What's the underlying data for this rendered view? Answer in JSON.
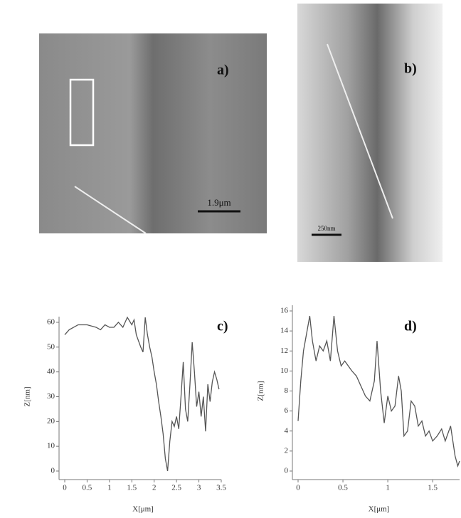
{
  "images": [
    {
      "label": "a)",
      "scale_bar": "1.9μm"
    },
    {
      "label": "b)",
      "scale_bar": "250nm"
    }
  ],
  "chart_data": [
    {
      "type": "line",
      "title": "c)",
      "x_label": "X[μm]",
      "y_label": "Z[nm]",
      "color": "#555555",
      "x": [
        0,
        0.1,
        0.2,
        0.3,
        0.5,
        0.7,
        0.8,
        0.9,
        1.0,
        1.1,
        1.2,
        1.3,
        1.4,
        1.5,
        1.55,
        1.6,
        1.7,
        1.75,
        1.8,
        1.85,
        1.9,
        1.95,
        2.0,
        2.05,
        2.1,
        2.15,
        2.2,
        2.25,
        2.3,
        2.35,
        2.4,
        2.45,
        2.5,
        2.55,
        2.6,
        2.65,
        2.7,
        2.75,
        2.8,
        2.85,
        2.9,
        2.95,
        3.0,
        3.05,
        3.1,
        3.15,
        3.2,
        3.25,
        3.3,
        3.35,
        3.4,
        3.45
      ],
      "values": [
        55,
        57,
        58,
        59,
        59,
        58,
        57,
        59,
        58,
        58,
        60,
        58,
        62,
        59,
        61,
        55,
        50,
        48,
        62,
        55,
        50,
        46,
        40,
        35,
        28,
        22,
        15,
        5,
        0,
        12,
        20,
        18,
        22,
        17,
        30,
        44,
        25,
        20,
        35,
        52,
        40,
        26,
        32,
        22,
        30,
        16,
        35,
        28,
        36,
        40,
        37,
        33
      ],
      "xlim": [
        0,
        3.5
      ],
      "xticks": [
        0,
        0.5,
        1,
        1.5,
        2,
        2.5,
        3,
        3.5
      ],
      "ylim": [
        0,
        60
      ],
      "yticks": [
        0,
        10,
        20,
        30,
        40,
        50,
        60
      ]
    },
    {
      "type": "line",
      "title": "d)",
      "x_label": "X[μm]",
      "y_label": "Z[nm]",
      "color": "#555555",
      "x": [
        0,
        0.03,
        0.06,
        0.1,
        0.13,
        0.16,
        0.2,
        0.24,
        0.28,
        0.32,
        0.36,
        0.4,
        0.44,
        0.48,
        0.52,
        0.56,
        0.6,
        0.65,
        0.7,
        0.75,
        0.8,
        0.85,
        0.88,
        0.92,
        0.96,
        1.0,
        1.04,
        1.08,
        1.12,
        1.15,
        1.18,
        1.22,
        1.26,
        1.3,
        1.34,
        1.38,
        1.42,
        1.46,
        1.5,
        1.55,
        1.6,
        1.64,
        1.7,
        1.75,
        1.78,
        1.8
      ],
      "values": [
        5,
        9,
        12,
        14,
        15.5,
        13,
        11,
        12.5,
        12,
        13,
        11,
        15.5,
        12,
        10.5,
        11,
        10.5,
        10,
        9.5,
        8.5,
        7.5,
        7,
        9,
        13,
        8,
        4.8,
        7.5,
        6,
        6.5,
        9.5,
        8,
        3.5,
        4,
        7,
        6.5,
        4.5,
        5,
        3.5,
        4,
        3,
        3.5,
        4.2,
        3,
        4.5,
        1.5,
        0.5,
        1
      ],
      "xlim": [
        0,
        1.8
      ],
      "xticks": [
        0,
        0.5,
        1,
        1.5
      ],
      "ylim": [
        0,
        16
      ],
      "yticks": [
        0,
        2,
        4,
        6,
        8,
        10,
        12,
        14,
        16
      ]
    }
  ]
}
